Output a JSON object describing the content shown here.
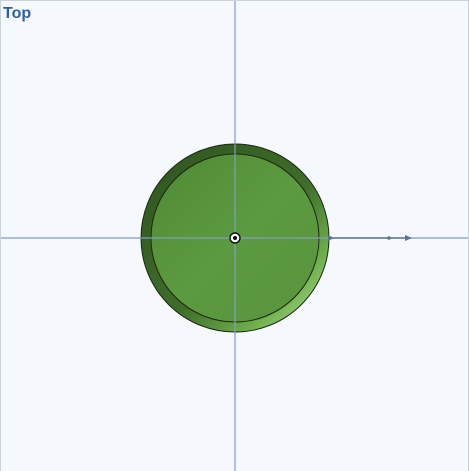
{
  "viewport": {
    "view_name": "Top",
    "icons": {
      "origin_marker": "origin-icon",
      "axis_arrow": "axis-arrow-icon"
    },
    "colors": {
      "background": "#f5f8fc",
      "axis_line": "#7f9fc2",
      "label": "#2e5f9e",
      "part_face": "#5a9a3e",
      "part_rim_dark": "#345b22",
      "part_rim_light": "#9ed27a",
      "outline": "#1a2a12"
    }
  }
}
